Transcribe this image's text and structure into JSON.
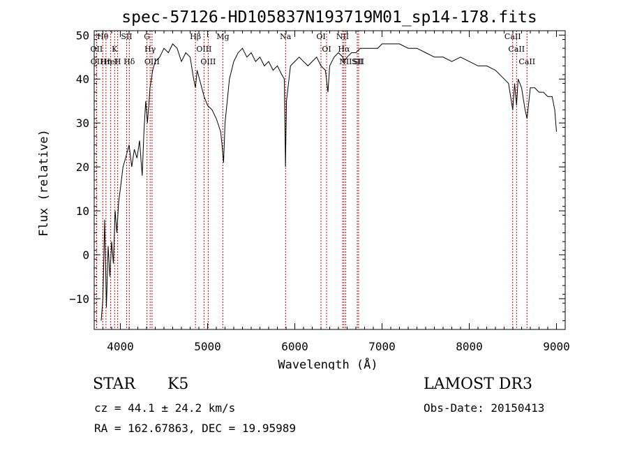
{
  "chart_data": {
    "type": "line",
    "title": "spec-57126-HD105837N193719M01_sp14-178.fits",
    "xlabel": "Wavelength (Å)",
    "ylabel": "Flux (relative)",
    "xlim": [
      3700,
      9100
    ],
    "ylim": [
      -17,
      51
    ],
    "xticks": [
      4000,
      5000,
      6000,
      7000,
      8000,
      9000
    ],
    "yticks": [
      -10,
      0,
      10,
      20,
      30,
      40,
      50
    ],
    "grid": false,
    "series": [
      {
        "name": "spectrum",
        "x": [
          3780,
          3800,
          3820,
          3840,
          3860,
          3880,
          3900,
          3920,
          3940,
          3960,
          3980,
          4000,
          4030,
          4060,
          4100,
          4130,
          4160,
          4190,
          4220,
          4250,
          4270,
          4290,
          4310,
          4340,
          4370,
          4400,
          4450,
          4500,
          4550,
          4600,
          4650,
          4700,
          4750,
          4800,
          4840,
          4861,
          4880,
          4920,
          4960,
          5000,
          5050,
          5100,
          5150,
          5170,
          5183,
          5200,
          5250,
          5300,
          5350,
          5400,
          5450,
          5500,
          5550,
          5600,
          5650,
          5700,
          5750,
          5800,
          5850,
          5880,
          5893,
          5905,
          5950,
          6000,
          6050,
          6100,
          6150,
          6200,
          6250,
          6300,
          6350,
          6380,
          6400,
          6450,
          6500,
          6550,
          6563,
          6600,
          6650,
          6700,
          6750,
          6800,
          6850,
          6900,
          6950,
          7000,
          7100,
          7200,
          7300,
          7400,
          7500,
          7600,
          7700,
          7800,
          7900,
          8000,
          8100,
          8200,
          8300,
          8400,
          8450,
          8498,
          8520,
          8542,
          8560,
          8600,
          8640,
          8662,
          8700,
          8750,
          8800,
          8850,
          8900,
          8950,
          8980,
          9000
        ],
        "values": [
          -15,
          -10,
          8,
          -12,
          2,
          -5,
          3,
          -2,
          10,
          5,
          12,
          15,
          20,
          22,
          25,
          20,
          24,
          22,
          26,
          18,
          28,
          35,
          30,
          38,
          42,
          44,
          45,
          47,
          46,
          48,
          47,
          44,
          46,
          45,
          40,
          38,
          42,
          39,
          36,
          34,
          33,
          31,
          28,
          24,
          21,
          30,
          40,
          44,
          46,
          47,
          45,
          46,
          44,
          45,
          43,
          44,
          42,
          43,
          41,
          40,
          20,
          35,
          43,
          44,
          45,
          44,
          43,
          44,
          45,
          43,
          42,
          37,
          43,
          45,
          46,
          45,
          44,
          45,
          46,
          46,
          47,
          47,
          47,
          47,
          47,
          48,
          48,
          48,
          47,
          47,
          46,
          45,
          45,
          44,
          45,
          44,
          43,
          43,
          42,
          40,
          39,
          33,
          39,
          34,
          40,
          38,
          33,
          31,
          38,
          38,
          37,
          37,
          36,
          36,
          33,
          28
        ]
      }
    ],
    "line_markers": [
      {
        "label": "Hθ",
        "wavelength": 3798
      },
      {
        "label": "OII",
        "wavelength": 3727
      },
      {
        "label": "OII",
        "wavelength": 3729
      },
      {
        "label": "Hη",
        "wavelength": 3835
      },
      {
        "label": "HeI",
        "wavelength": 3889
      },
      {
        "label": "K",
        "wavelength": 3934
      },
      {
        "label": "H",
        "wavelength": 3969
      },
      {
        "label": "SII",
        "wavelength": 4072
      },
      {
        "label": "Hδ",
        "wavelength": 4102
      },
      {
        "label": "G",
        "wavelength": 4305
      },
      {
        "label": "Hγ",
        "wavelength": 4341
      },
      {
        "label": "OIII",
        "wavelength": 4363
      },
      {
        "label": "Hβ",
        "wavelength": 4861
      },
      {
        "label": "OIII",
        "wavelength": 4959
      },
      {
        "label": "OIII",
        "wavelength": 5007
      },
      {
        "label": "Mg",
        "wavelength": 5175
      },
      {
        "label": "Na",
        "wavelength": 5894
      },
      {
        "label": "OI",
        "wavelength": 6300
      },
      {
        "label": "OI",
        "wavelength": 6364
      },
      {
        "label": "NII",
        "wavelength": 6548
      },
      {
        "label": "Hα",
        "wavelength": 6563
      },
      {
        "label": "NII",
        "wavelength": 6583
      },
      {
        "label": "SII",
        "wavelength": 6716
      },
      {
        "label": "SII",
        "wavelength": 6731
      },
      {
        "label": "CaII",
        "wavelength": 8498
      },
      {
        "label": "CaII",
        "wavelength": 8542
      },
      {
        "label": "CaII",
        "wavelength": 8662
      }
    ]
  },
  "info": {
    "class": "STAR",
    "subclass": "K5",
    "survey": "LAMOST DR3",
    "cz": "cz = 44.1 ± 24.2 km/s",
    "obs_date": "Obs-Date: 20150413",
    "radec": "RA = 162.67863, DEC =  19.95989"
  },
  "colors": {
    "line": "#000000",
    "marker": "#cc0000",
    "background": "#ffffff"
  }
}
